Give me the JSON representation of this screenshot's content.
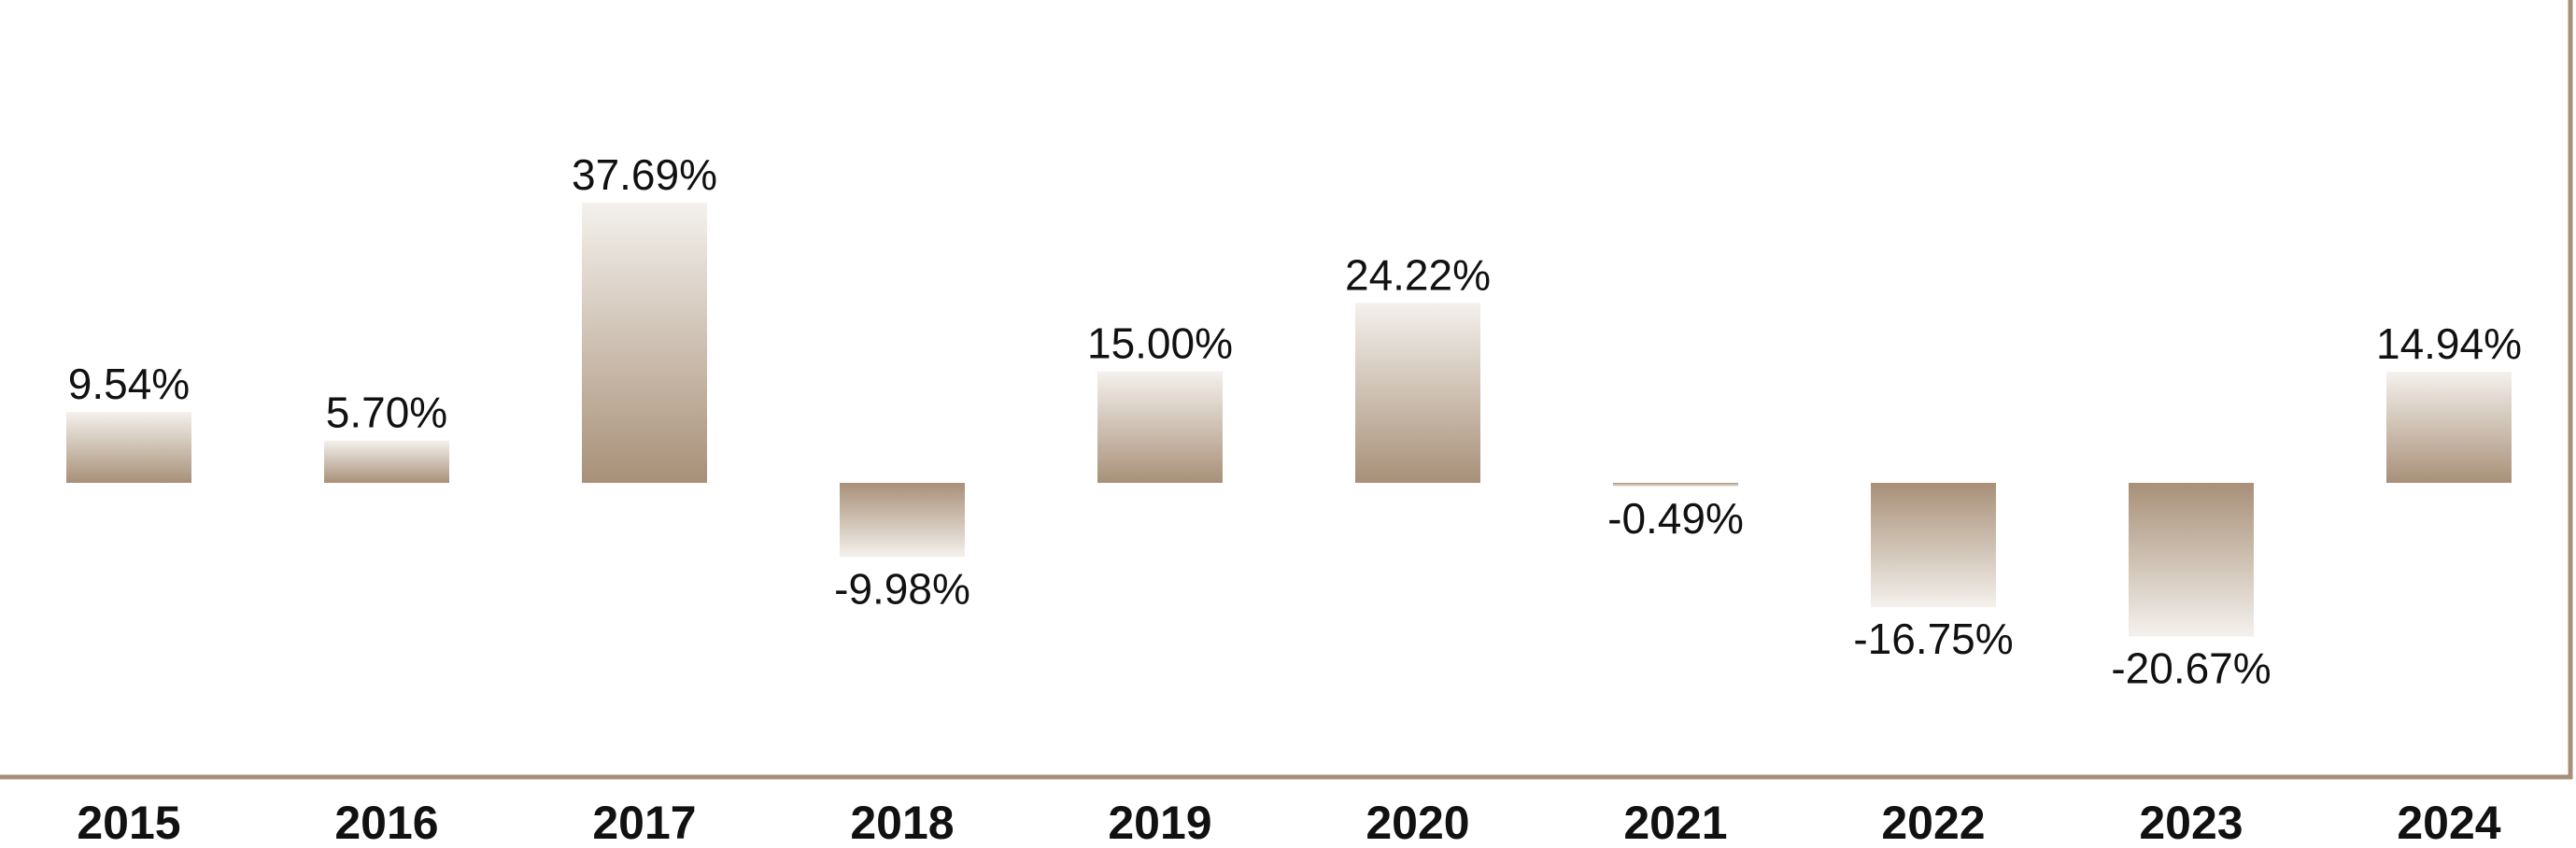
{
  "chart_data": {
    "type": "bar",
    "title": "",
    "xlabel": "",
    "ylabel": "",
    "categories": [
      "2015",
      "2016",
      "2017",
      "2018",
      "2019",
      "2020",
      "2021",
      "2022",
      "2023",
      "2024"
    ],
    "values": [
      9.54,
      5.7,
      37.69,
      -9.98,
      15.0,
      24.22,
      -0.49,
      -16.75,
      -20.67,
      14.94
    ],
    "value_labels": [
      "9.54%",
      "5.70%",
      "37.69%",
      "-9.98%",
      "15.00%",
      "24.22%",
      "-0.49%",
      "-16.75%",
      "-20.67%",
      "14.94%"
    ],
    "ylim": [
      -39.6,
      65.0
    ],
    "grid": false,
    "legend": "none",
    "colors": {
      "bar_dark": "#a89078",
      "bar_light": "#f4f1ed",
      "axis": "#a89078",
      "text": "#111111"
    }
  }
}
